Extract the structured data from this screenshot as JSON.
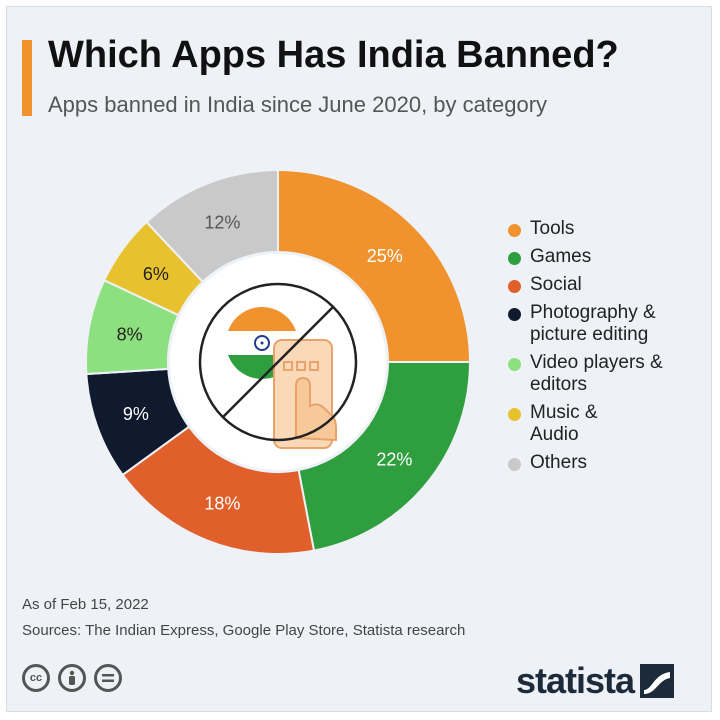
{
  "header": {
    "title": "Which Apps Has India Banned?",
    "subtitle": "Apps banned in India since June 2020, by category"
  },
  "chart_data": {
    "type": "pie",
    "style": "donut",
    "title": "Which Apps Has India Banned?",
    "subtitle": "Apps banned in India since June 2020, by category",
    "categories": [
      "Tools",
      "Games",
      "Social",
      "Photography & picture editing",
      "Video players & editors",
      "Music & Audio",
      "Others"
    ],
    "values": [
      25,
      22,
      18,
      9,
      8,
      6,
      12
    ],
    "value_labels": [
      "25%",
      "22%",
      "18%",
      "9%",
      "8%",
      "6%",
      "12%"
    ],
    "colors": [
      "#f0922e",
      "#2e9e3e",
      "#e05f2b",
      "#0f1a2e",
      "#8de07f",
      "#e8c12f",
      "#c9c9c9"
    ],
    "label_colors": [
      "#ffffff",
      "#ffffff",
      "#ffffff",
      "#ffffff",
      "#222222",
      "#222222",
      "#555555"
    ],
    "legend_position": "right",
    "center_icon": "banned-india-app-icon"
  },
  "legend": [
    {
      "label": "Tools",
      "color": "#f0922e"
    },
    {
      "label": "Games",
      "color": "#2e9e3e"
    },
    {
      "label": "Social",
      "color": "#e05f2b"
    },
    {
      "label": "Photography &\npicture editing",
      "color": "#0f1a2e"
    },
    {
      "label": "Video players &\neditors",
      "color": "#8de07f"
    },
    {
      "label": "Music &\nAudio",
      "color": "#e8c12f"
    },
    {
      "label": "Others",
      "color": "#c9c9c9"
    }
  ],
  "footer": {
    "as_of": "As of Feb 15, 2022",
    "sources": "Sources: The Indian Express, Google Play Store, Statista research",
    "brand": "statista",
    "license_icons": [
      "cc-icon",
      "attribution-icon",
      "no-derivatives-icon"
    ]
  }
}
